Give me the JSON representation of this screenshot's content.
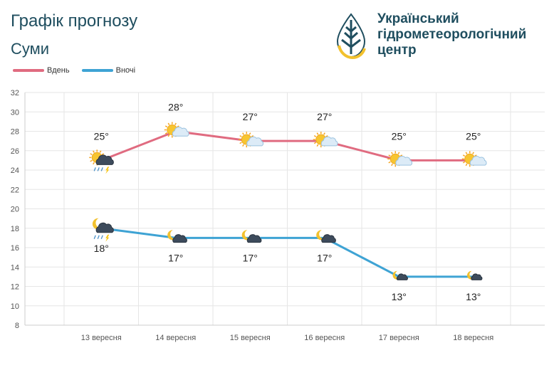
{
  "header": {
    "title": "Графік прогнозу",
    "city": "Суми"
  },
  "logo": {
    "line1": "Український",
    "line2": "гідрометеорологічний",
    "line3": "центр",
    "colors": {
      "dark": "#1f4e5f",
      "yellow": "#f2c12e"
    }
  },
  "colors": {
    "day": "#e06b80",
    "night": "#3ea3d4",
    "grid": "#e6e6e6",
    "axis_text": "#555555"
  },
  "chart_data": {
    "type": "line",
    "categories": [
      "13 вересня",
      "14 вересня",
      "15 вересня",
      "16 вересня",
      "17 вересня",
      "18 вересня"
    ],
    "series": [
      {
        "name": "Вдень",
        "values": [
          25,
          28,
          27,
          27,
          25,
          25
        ],
        "labels": [
          "25°",
          "28°",
          "27°",
          "27°",
          "25°",
          "25°"
        ],
        "icons": [
          "sun-cloud-thunder-rain",
          "sun-cloud",
          "sun-cloud",
          "sun-cloud",
          "sun-cloud",
          "sun-cloud"
        ]
      },
      {
        "name": "Вночі",
        "values": [
          18,
          17,
          17,
          17,
          13,
          13
        ],
        "labels": [
          "18°",
          "17°",
          "17°",
          "17°",
          "13°",
          "13°"
        ],
        "icons": [
          "moon-cloud-thunder-rain",
          "moon-cloud",
          "moon-cloud",
          "moon-cloud",
          "moon-cloud-small",
          "moon-cloud-small"
        ]
      }
    ],
    "ylim": [
      8,
      32
    ],
    "yticks": [
      8,
      10,
      12,
      14,
      16,
      18,
      20,
      22,
      24,
      26,
      28,
      30,
      32
    ],
    "grid": true,
    "legend": "top-left"
  }
}
